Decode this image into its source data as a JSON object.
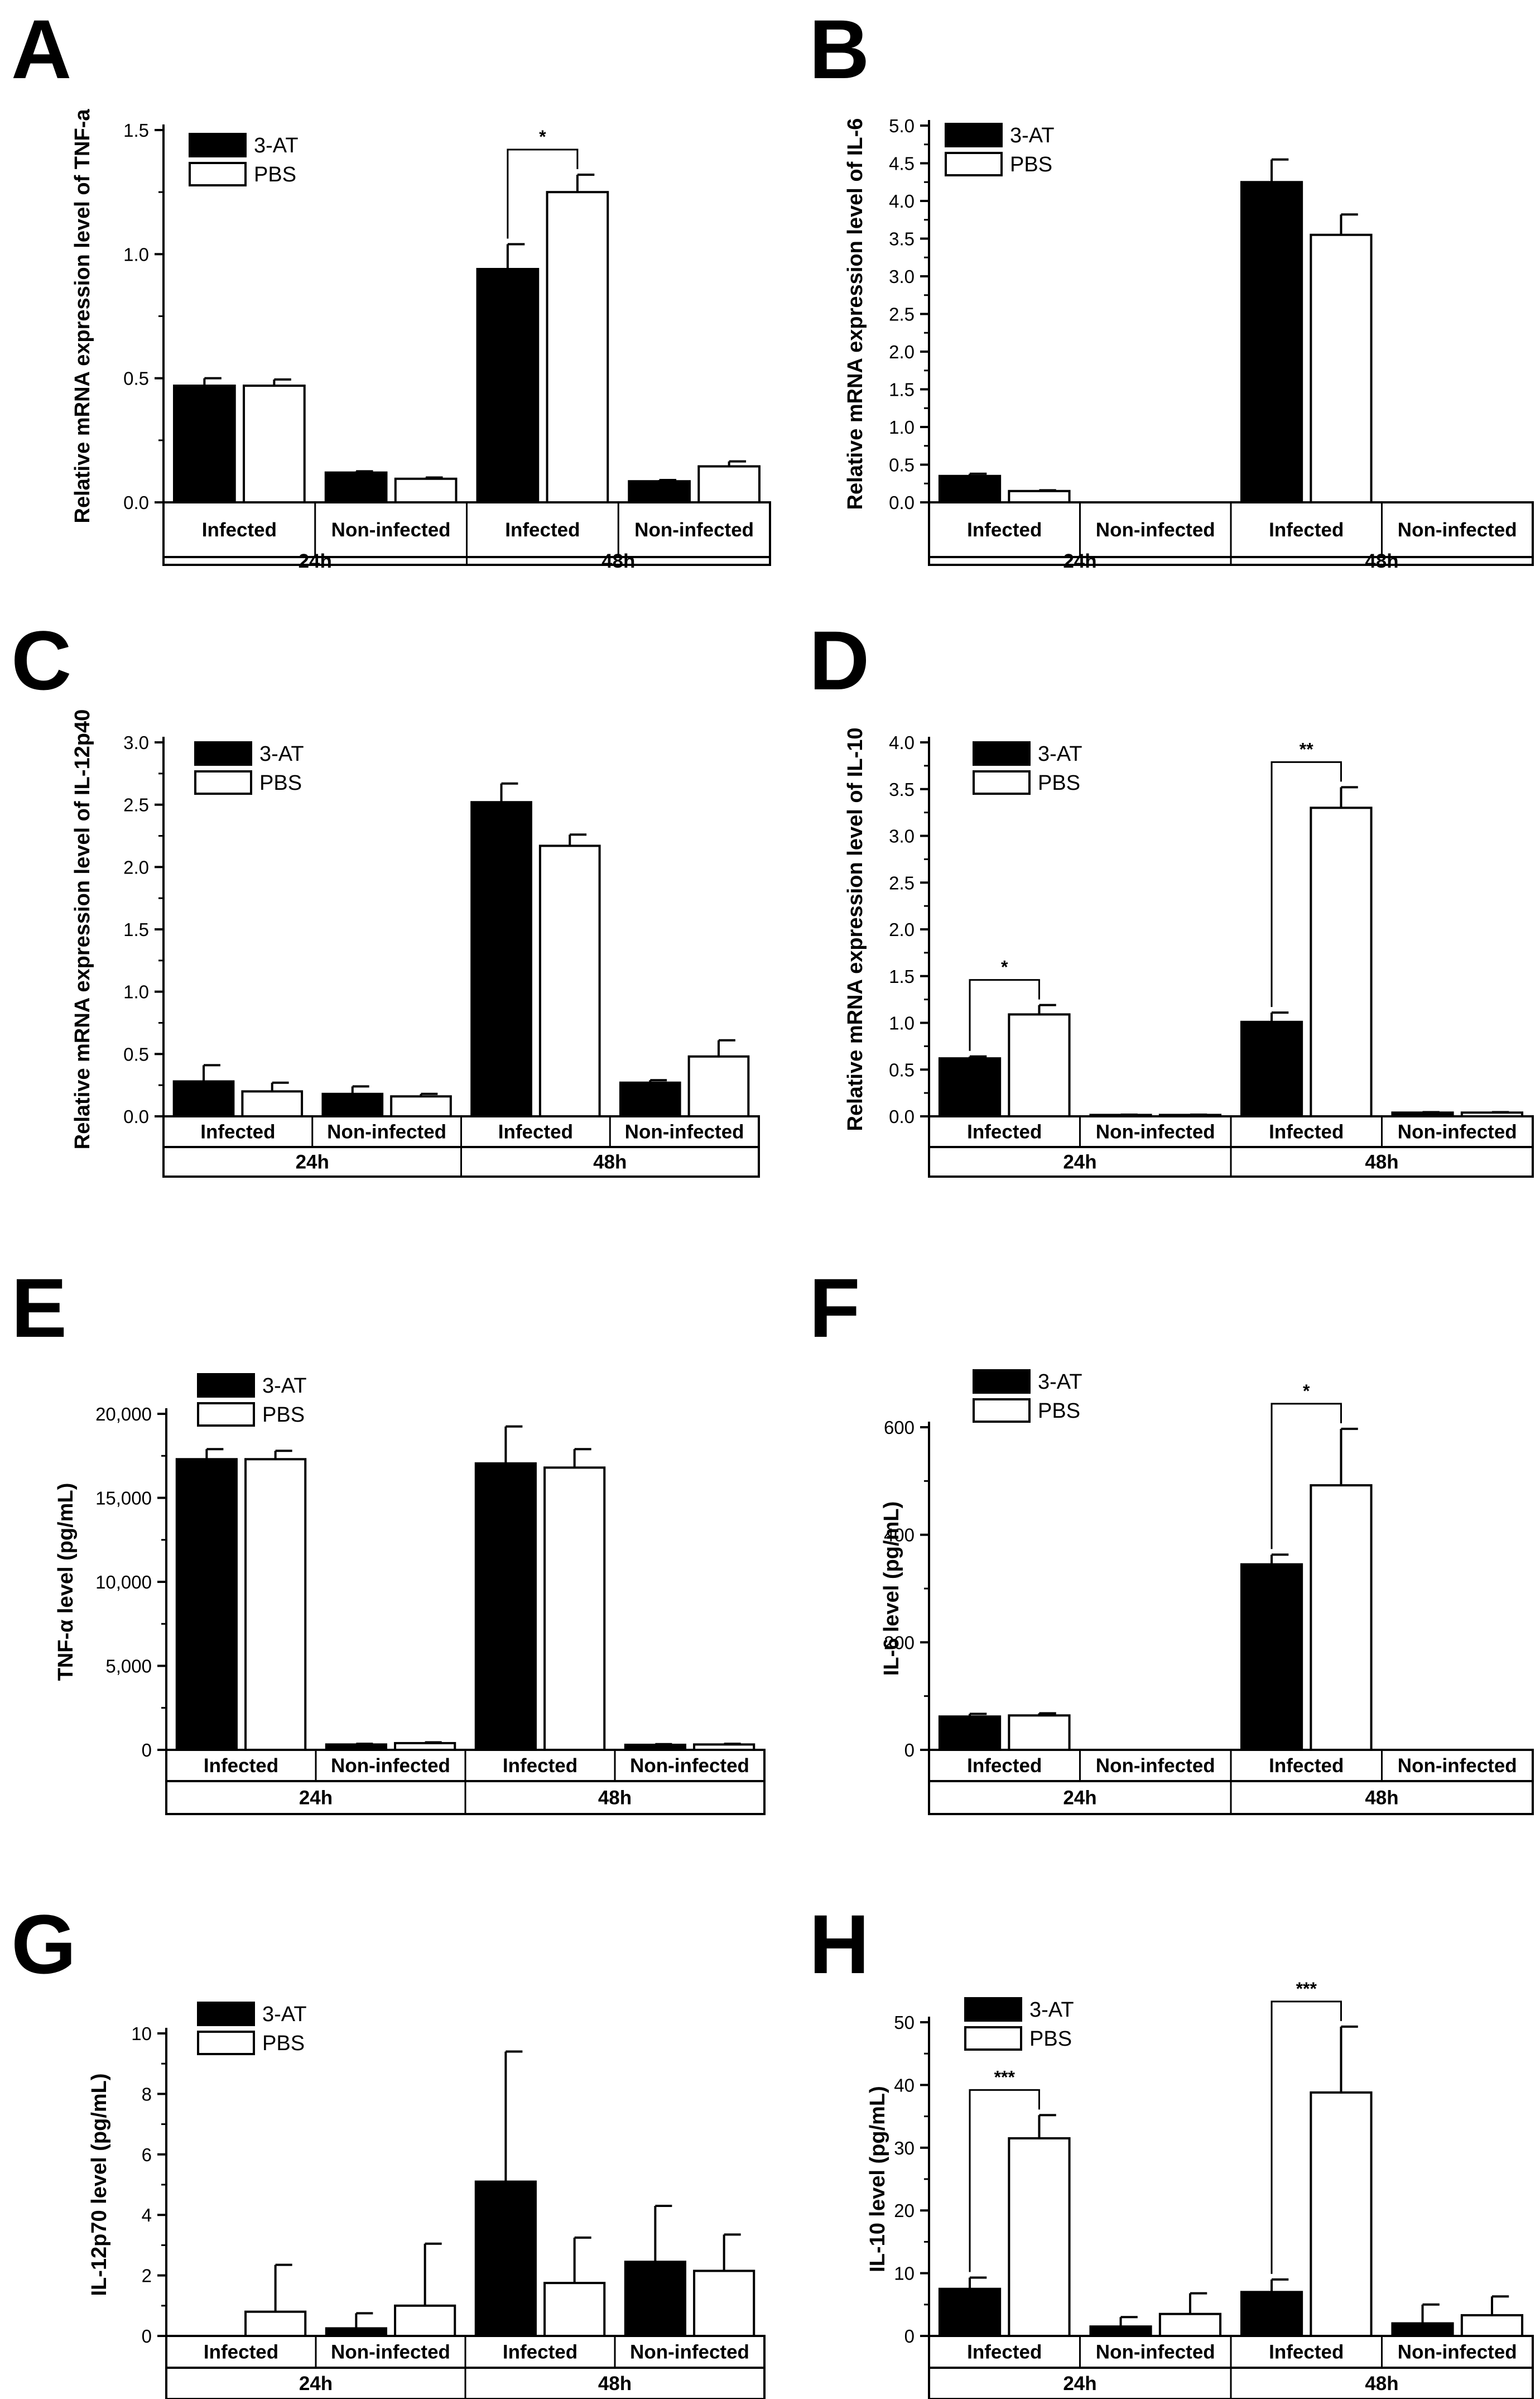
{
  "legend": [
    {
      "name": "3-AT",
      "color": "#000000"
    },
    {
      "name": "PBS",
      "color": "#ffffff"
    }
  ],
  "categories": [
    "Infected",
    "Non-infected",
    "Infected",
    "Non-infected"
  ],
  "groups": [
    "24h",
    "48h"
  ],
  "chart_data": [
    {
      "panel": "A",
      "type": "bar",
      "ylabel": "Relative mRNA expression level of TNF-a",
      "ylim": [
        0,
        1.5
      ],
      "yticks": [
        "0.0",
        "0.5",
        "1.0",
        "1.5"
      ],
      "series": [
        {
          "name": "3-AT",
          "values": [
            0.47,
            0.12,
            0.94,
            0.085
          ],
          "errors": [
            0.03,
            0.005,
            0.1,
            0.005
          ]
        },
        {
          "name": "PBS",
          "values": [
            0.47,
            0.095,
            1.25,
            0.145
          ],
          "errors": [
            0.025,
            0.005,
            0.07,
            0.02
          ]
        }
      ],
      "significance": [
        {
          "category": 2,
          "label": "*"
        }
      ]
    },
    {
      "panel": "B",
      "type": "bar",
      "ylabel": "Relative mRNA expression level of IL-6",
      "ylim": [
        0,
        5.0
      ],
      "yticks": [
        "0.0",
        "0.5",
        "1.0",
        "1.5",
        "2.0",
        "2.5",
        "3.0",
        "3.5",
        "4.0",
        "4.5",
        "5.0"
      ],
      "series": [
        {
          "name": "3-AT",
          "values": [
            0.35,
            0,
            4.25,
            0
          ],
          "errors": [
            0.03,
            0,
            0.3,
            0
          ]
        },
        {
          "name": "PBS",
          "values": [
            0.15,
            0,
            3.55,
            0
          ],
          "errors": [
            0.01,
            0,
            0.27,
            0
          ]
        }
      ],
      "significance": []
    },
    {
      "panel": "C",
      "type": "bar",
      "ylabel": "Relative mRNA expression level of IL-12p40",
      "ylim": [
        0,
        3.0
      ],
      "yticks": [
        "0.0",
        "0.5",
        "1.0",
        "1.5",
        "2.0",
        "2.5",
        "3.0"
      ],
      "series": [
        {
          "name": "3-AT",
          "values": [
            0.28,
            0.18,
            2.52,
            0.27
          ],
          "errors": [
            0.13,
            0.06,
            0.15,
            0.02
          ]
        },
        {
          "name": "PBS",
          "values": [
            0.2,
            0.16,
            2.17,
            0.48
          ],
          "errors": [
            0.07,
            0.02,
            0.09,
            0.13
          ]
        }
      ],
      "significance": []
    },
    {
      "panel": "D",
      "type": "bar",
      "ylabel": "Relative mRNA expression level of IL-10",
      "ylim": [
        0,
        4.0
      ],
      "yticks": [
        "0.0",
        "0.5",
        "1.0",
        "1.5",
        "2.0",
        "2.5",
        "3.0",
        "3.5",
        "4.0"
      ],
      "series": [
        {
          "name": "3-AT",
          "values": [
            0.62,
            0.015,
            1.01,
            0.04
          ],
          "errors": [
            0.02,
            0.003,
            0.1,
            0.005
          ]
        },
        {
          "name": "PBS",
          "values": [
            1.09,
            0.015,
            3.3,
            0.04
          ],
          "errors": [
            0.1,
            0.003,
            0.22,
            0.005
          ]
        }
      ],
      "significance": [
        {
          "category": 0,
          "label": "*"
        },
        {
          "category": 2,
          "label": "**"
        }
      ]
    },
    {
      "panel": "E",
      "type": "bar",
      "ylabel": "TNF-α level (pg/mL)",
      "ylim": [
        0,
        20000
      ],
      "yticks": [
        "0",
        "5,000",
        "10,000",
        "15,000",
        "20,000"
      ],
      "series": [
        {
          "name": "3-AT",
          "values": [
            17300,
            320,
            17050,
            300
          ],
          "errors": [
            600,
            40,
            2200,
            40
          ]
        },
        {
          "name": "PBS",
          "values": [
            17300,
            400,
            16800,
            320
          ],
          "errors": [
            500,
            50,
            1100,
            40
          ]
        }
      ],
      "significance": []
    },
    {
      "panel": "F",
      "type": "bar",
      "ylabel": "IL-6 level (pg/mL)",
      "ylim": [
        0,
        600
      ],
      "yticks": [
        "0",
        "200",
        "400",
        "600"
      ],
      "series": [
        {
          "name": "3-AT",
          "values": [
            62,
            0,
            345,
            0
          ],
          "errors": [
            5,
            0,
            18,
            0
          ]
        },
        {
          "name": "PBS",
          "values": [
            64,
            0,
            492,
            0
          ],
          "errors": [
            4,
            0,
            105,
            0
          ]
        }
      ],
      "significance": [
        {
          "category": 2,
          "label": "*"
        }
      ]
    },
    {
      "panel": "G",
      "type": "bar",
      "ylabel": "IL-12p70 level (pg/mL)",
      "ylim": [
        0,
        10
      ],
      "yticks": [
        "0",
        "2",
        "4",
        "6",
        "8",
        "10"
      ],
      "series": [
        {
          "name": "3-AT",
          "values": [
            0,
            0.25,
            5.1,
            2.45
          ],
          "errors": [
            0,
            0.5,
            4.3,
            1.85
          ]
        },
        {
          "name": "PBS",
          "values": [
            0.8,
            1.0,
            1.75,
            2.15
          ],
          "errors": [
            1.55,
            2.05,
            1.5,
            1.2
          ]
        }
      ],
      "significance": []
    },
    {
      "panel": "H",
      "type": "bar",
      "ylabel": "IL-10 level (pg/mL)",
      "ylim": [
        0,
        50
      ],
      "yticks": [
        "0",
        "10",
        "20",
        "30",
        "40",
        "50"
      ],
      "series": [
        {
          "name": "3-AT",
          "values": [
            7.5,
            1.5,
            7.0,
            2.0
          ],
          "errors": [
            1.8,
            1.5,
            2.0,
            3.0
          ]
        },
        {
          "name": "PBS",
          "values": [
            31.5,
            3.5,
            38.8,
            3.3
          ],
          "errors": [
            3.7,
            3.3,
            10.5,
            3.0
          ]
        }
      ],
      "significance": [
        {
          "category": 0,
          "label": "***"
        },
        {
          "category": 2,
          "label": "***"
        }
      ]
    }
  ]
}
